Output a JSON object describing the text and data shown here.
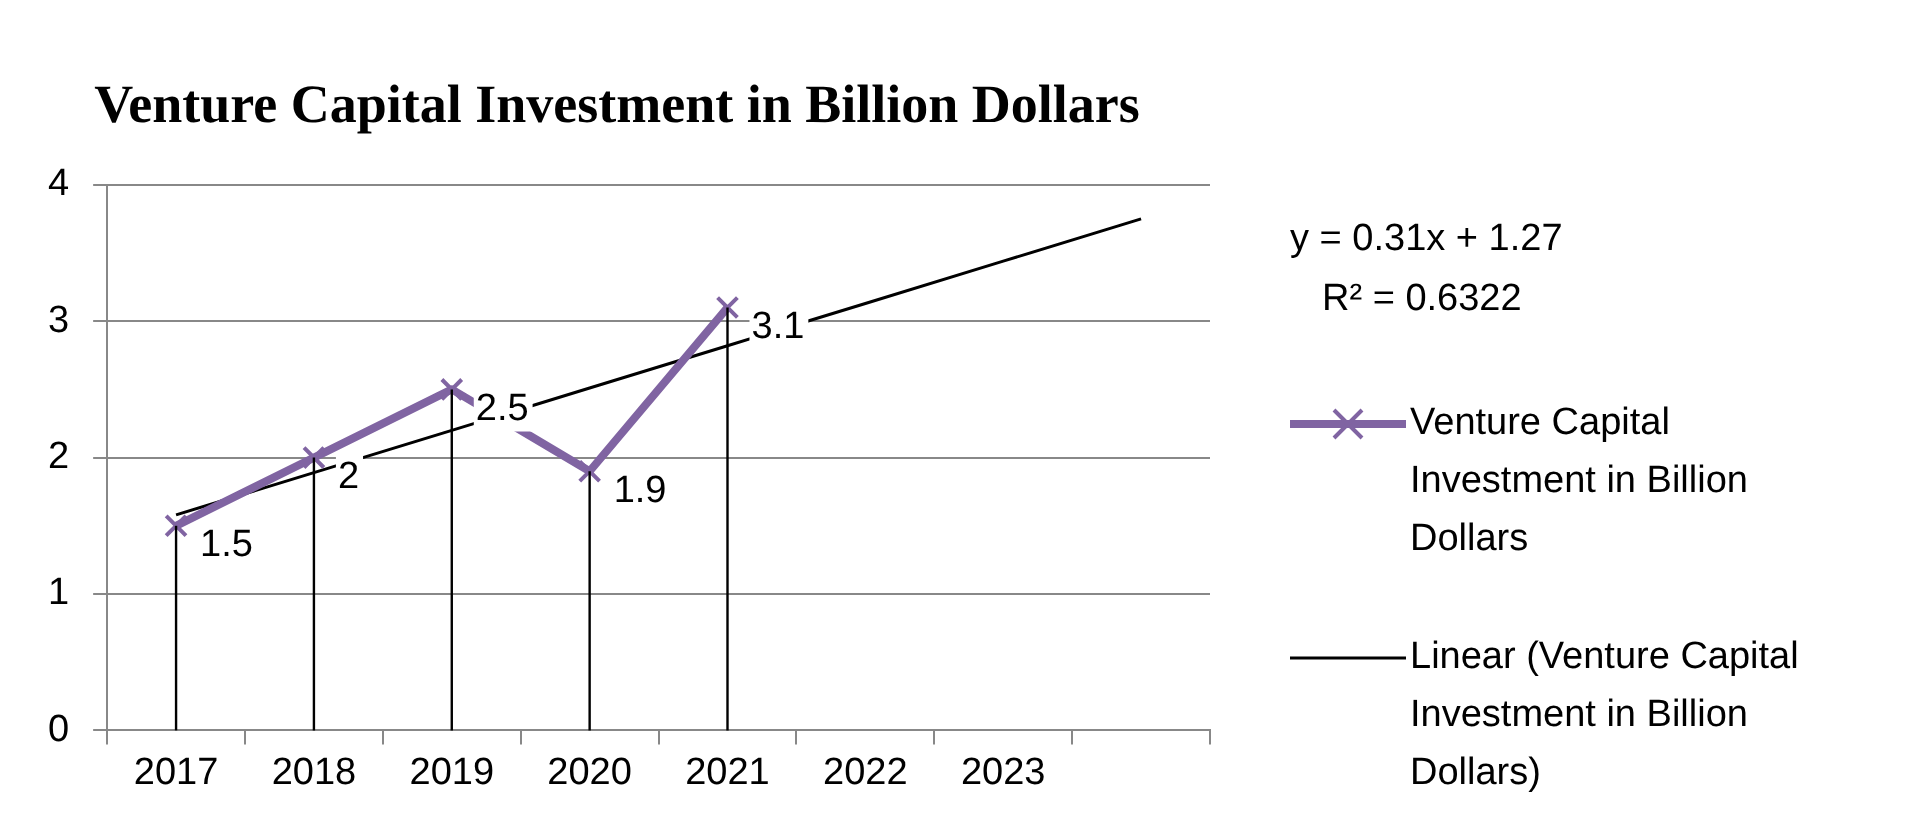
{
  "chart_data": {
    "type": "line",
    "title": "Venture Capital Investment in Billion Dollars",
    "categories": [
      "2017",
      "2018",
      "2019",
      "2020",
      "2021",
      "2022",
      "2023",
      null
    ],
    "series": [
      {
        "name": "Venture Capital Investment in Billion Dollars",
        "color": "#8064a2",
        "values": [
          1.5,
          2,
          2.5,
          1.9,
          3.1,
          null,
          null,
          null
        ],
        "marker": "cross",
        "data_labels": true
      },
      {
        "name": "Linear (Venture Capital Investment in Billion Dollars)",
        "color": "#000000",
        "values": [
          1.58,
          1.89,
          2.2,
          2.51,
          2.82,
          3.13,
          3.44,
          3.75
        ],
        "marker": "none"
      }
    ],
    "ylim": [
      0,
      4
    ],
    "yticks": [
      0,
      1,
      2,
      3,
      4
    ],
    "grid": "y",
    "legend": "right",
    "annotations": [
      "y = 0.31x + 1.27",
      "R² = 0.6322"
    ]
  }
}
